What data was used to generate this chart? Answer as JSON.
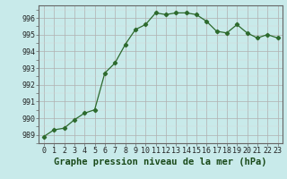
{
  "x": [
    0,
    1,
    2,
    3,
    4,
    5,
    6,
    7,
    8,
    9,
    10,
    11,
    12,
    13,
    14,
    15,
    16,
    17,
    18,
    19,
    20,
    21,
    22,
    23
  ],
  "y": [
    988.9,
    989.3,
    989.4,
    989.9,
    990.3,
    990.5,
    992.7,
    993.3,
    994.4,
    995.3,
    995.6,
    996.3,
    996.2,
    996.3,
    996.3,
    996.2,
    995.8,
    995.2,
    995.1,
    995.6,
    995.1,
    994.8,
    995.0,
    994.8
  ],
  "line_color": "#2d6a2d",
  "marker": "D",
  "marker_size": 2.2,
  "background_color": "#c8eaea",
  "grid_color_major": "#b0b0b0",
  "grid_color_minor": "#d8d8d8",
  "ylabel_ticks": [
    989,
    990,
    991,
    992,
    993,
    994,
    995,
    996
  ],
  "ylim": [
    988.5,
    996.75
  ],
  "xlim": [
    -0.5,
    23.5
  ],
  "xlabel": "Graphe pression niveau de la mer (hPa)",
  "xlabel_fontsize": 7.5,
  "tick_fontsize": 6.0,
  "spine_color": "#666666"
}
